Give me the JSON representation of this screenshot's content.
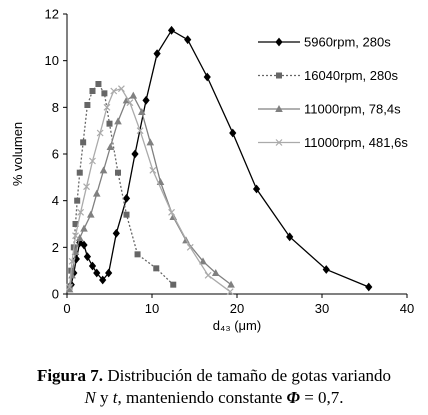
{
  "chart_data": {
    "type": "line",
    "xlabel": "d₄₃ (μm)",
    "ylabel": "% volumen",
    "xlim": [
      0,
      40
    ],
    "xticks": [
      0,
      10,
      20,
      30,
      40
    ],
    "ylim": [
      0,
      12
    ],
    "yticks": [
      0,
      2,
      4,
      6,
      8,
      10,
      12
    ],
    "grid": false,
    "legend": "upper right",
    "series": [
      {
        "name": "5960rpm, 280s",
        "color": "#000000",
        "marker": "diamond",
        "dash": "solid",
        "x": [
          0.5,
          0.8,
          1.1,
          1.5,
          2.0,
          2.4,
          3.0,
          3.5,
          4.2,
          4.9,
          5.8,
          7.0,
          8.0,
          9.3,
          10.6,
          12.3,
          14.2,
          16.5,
          19.5,
          22.3,
          26.2,
          30.5,
          35.5
        ],
        "values": [
          0.4,
          0.9,
          1.5,
          2.2,
          2.1,
          1.6,
          1.2,
          0.9,
          0.6,
          0.9,
          2.6,
          4.1,
          6.0,
          8.3,
          10.3,
          11.3,
          10.9,
          9.3,
          6.9,
          4.5,
          2.45,
          1.05,
          0.3
        ]
      },
      {
        "name": "16040rpm, 280s",
        "color": "#666666",
        "marker": "square",
        "dash": "dotted",
        "x": [
          0.3,
          0.5,
          0.8,
          1.0,
          1.2,
          1.5,
          1.9,
          2.4,
          3.0,
          3.7,
          4.4,
          5.0,
          6.0,
          7.0,
          8.3,
          10.5,
          12.5
        ],
        "values": [
          0.3,
          1.0,
          2.0,
          3.0,
          4.0,
          5.2,
          6.5,
          8.1,
          8.7,
          9.0,
          8.6,
          7.3,
          5.2,
          3.4,
          1.7,
          1.1,
          0.4
        ]
      },
      {
        "name": "11000rpm, 78,4s",
        "color": "#808080",
        "marker": "triangle",
        "dash": "solid",
        "x": [
          0.3,
          0.6,
          1.0,
          1.5,
          2.0,
          2.8,
          3.5,
          4.3,
          5.1,
          6.0,
          7.0,
          7.8,
          8.8,
          9.8,
          11.0,
          12.5,
          14.0,
          16.0,
          17.5,
          19.3
        ],
        "values": [
          0.2,
          0.8,
          1.8,
          2.4,
          2.8,
          3.4,
          4.3,
          5.3,
          6.3,
          7.4,
          8.3,
          8.5,
          7.8,
          6.5,
          4.8,
          3.3,
          2.3,
          1.4,
          0.9,
          0.4
        ]
      },
      {
        "name": "11000rpm, 481,6s",
        "color": "#aaaaaa",
        "marker": "x",
        "dash": "solid",
        "x": [
          0.3,
          0.6,
          1.0,
          1.6,
          2.3,
          3.0,
          3.9,
          4.7,
          5.5,
          6.4,
          7.4,
          8.6,
          10.1,
          12.3,
          14.5,
          16.6,
          19.2
        ],
        "values": [
          0.3,
          1.4,
          2.5,
          3.5,
          4.6,
          5.7,
          6.9,
          8.0,
          8.7,
          8.8,
          8.2,
          7.0,
          5.3,
          3.5,
          2.0,
          0.8,
          0.1
        ]
      }
    ]
  },
  "caption": [
    "Figura 7.",
    " Distribución de tamaño de gotas variando",
    "N",
    " y ",
    "t",
    ", manteniendo constante ",
    "Φ",
    " = 0,7."
  ]
}
